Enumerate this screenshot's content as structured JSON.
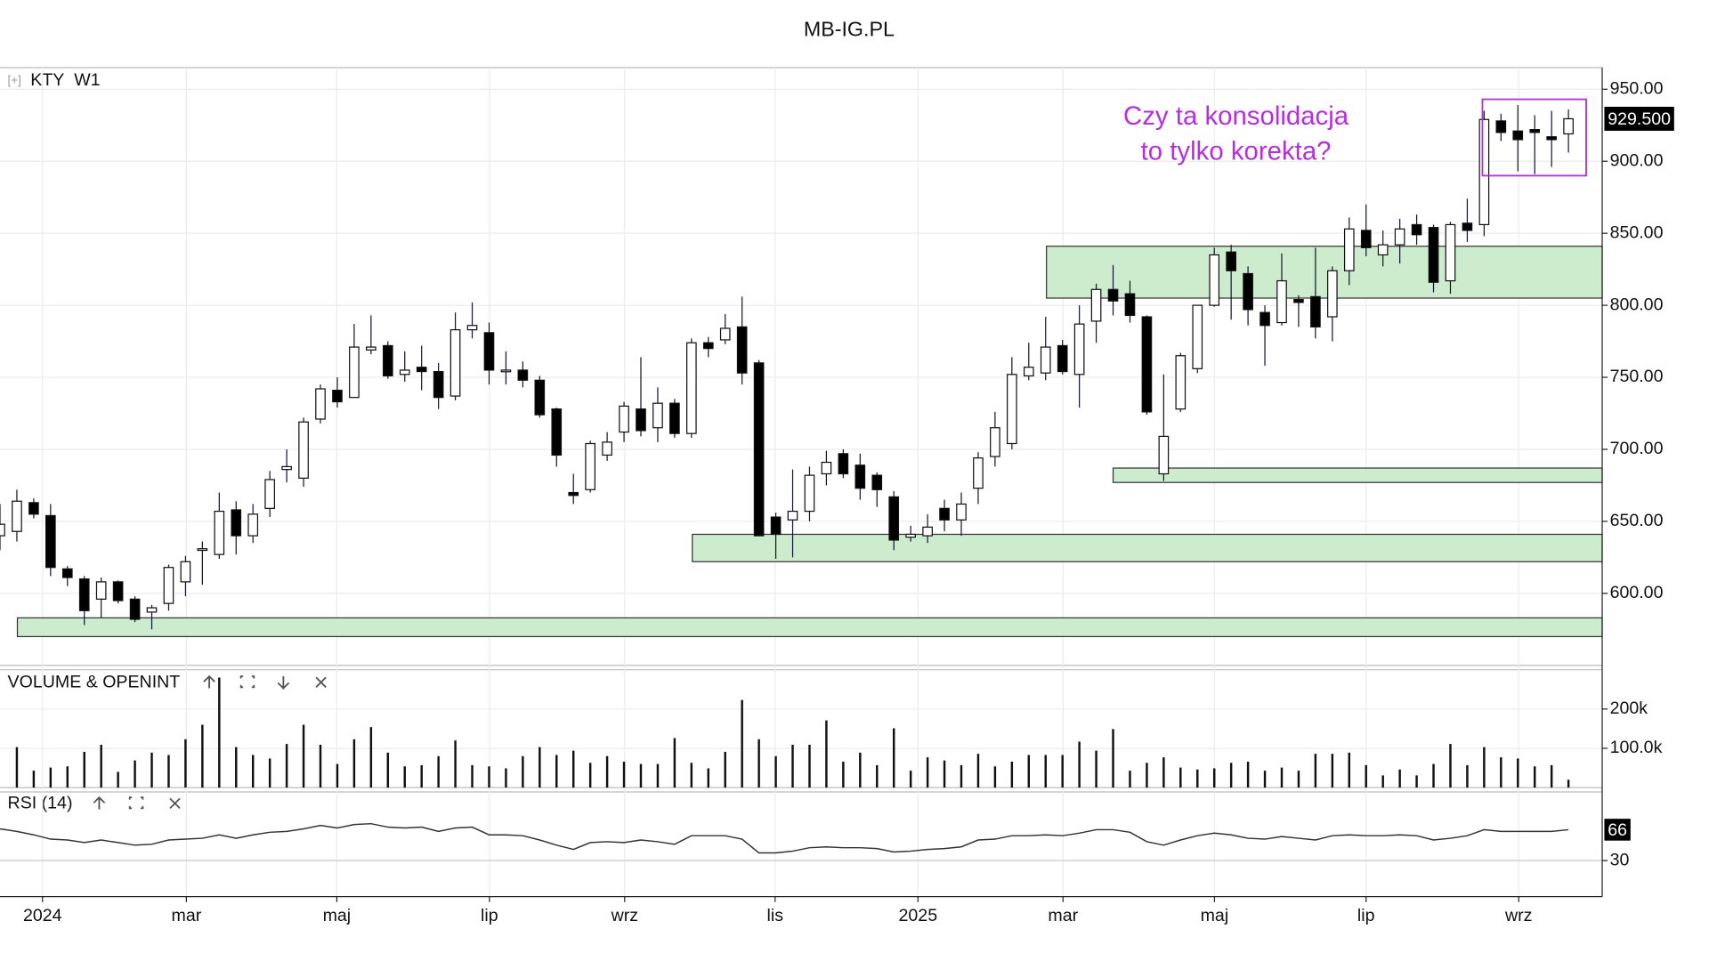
{
  "title": "MB-IG.PL",
  "header": {
    "toggle": "[+]",
    "symbol": "KTY",
    "timeframe": "W1"
  },
  "chart_data": [
    {
      "type": "candlestick",
      "name": "KTY",
      "open": [
        640,
        643,
        663,
        654,
        617,
        610,
        596,
        608,
        596,
        587,
        593,
        608,
        630,
        627,
        658,
        640,
        659,
        686,
        680,
        721,
        741,
        736,
        769,
        772,
        752,
        757,
        754,
        737,
        783,
        781,
        755,
        755,
        748,
        728,
        670,
        672,
        696,
        712,
        728,
        715,
        732,
        711,
        774,
        776,
        785,
        760,
        653,
        651,
        657,
        683,
        697,
        689,
        682,
        667,
        639,
        640,
        659,
        651,
        673,
        695,
        704,
        751,
        753,
        772,
        752,
        789,
        811,
        808,
        792,
        683,
        728,
        756,
        800,
        837,
        822,
        795,
        788,
        804,
        806,
        792,
        824,
        852,
        835,
        842,
        856,
        854,
        817,
        857,
        856,
        928,
        921,
        922,
        917,
        919
      ],
      "high": [
        662,
        672,
        666,
        662,
        619,
        612,
        611,
        609,
        598,
        592,
        620,
        626,
        636,
        670,
        664,
        662,
        685,
        700,
        722,
        745,
        750,
        787,
        793,
        775,
        768,
        772,
        760,
        795,
        802,
        788,
        768,
        761,
        751,
        729,
        683,
        706,
        712,
        733,
        764,
        743,
        735,
        777,
        778,
        794,
        806,
        762,
        656,
        686,
        688,
        699,
        700,
        697,
        684,
        671,
        647,
        655,
        665,
        670,
        698,
        726,
        764,
        774,
        792,
        776,
        800,
        815,
        828,
        817,
        793,
        752,
        767,
        800,
        840,
        842,
        827,
        800,
        836,
        807,
        840,
        827,
        861,
        870,
        852,
        860,
        863,
        856,
        858,
        874,
        935,
        933,
        939,
        932,
        935,
        936
      ],
      "low": [
        630,
        636,
        652,
        612,
        605,
        578,
        583,
        593,
        580,
        575,
        588,
        598,
        606,
        624,
        627,
        635,
        653,
        677,
        674,
        718,
        729,
        736,
        766,
        749,
        747,
        741,
        728,
        734,
        777,
        745,
        745,
        743,
        722,
        688,
        662,
        670,
        692,
        705,
        709,
        705,
        708,
        708,
        764,
        773,
        745,
        640,
        624,
        625,
        650,
        675,
        680,
        665,
        660,
        630,
        636,
        635,
        643,
        640,
        662,
        688,
        700,
        748,
        748,
        752,
        729,
        774,
        793,
        788,
        724,
        678,
        726,
        753,
        799,
        790,
        786,
        758,
        786,
        785,
        777,
        775,
        814,
        834,
        827,
        829,
        842,
        809,
        808,
        844,
        848,
        914,
        893,
        891,
        896,
        906
      ],
      "close": [
        648,
        664,
        655,
        618,
        611,
        588,
        608,
        595,
        582,
        590,
        618,
        622,
        631,
        657,
        640,
        655,
        679,
        688,
        719,
        742,
        733,
        771,
        771,
        751,
        755,
        754,
        736,
        783,
        786,
        755,
        755,
        748,
        724,
        696,
        668,
        704,
        705,
        730,
        713,
        732,
        711,
        774,
        770,
        784,
        753,
        640,
        641,
        657,
        682,
        691,
        683,
        673,
        672,
        637,
        641,
        646,
        651,
        662,
        694,
        715,
        752,
        757,
        771,
        754,
        787,
        811,
        803,
        793,
        726,
        709,
        765,
        800,
        835,
        824,
        797,
        786,
        817,
        802,
        785,
        824,
        853,
        840,
        842,
        853,
        849,
        816,
        856,
        852,
        929,
        920,
        915,
        920,
        915,
        929.5
      ],
      "last_label": "929.500",
      "ylim": [
        550,
        965
      ],
      "yticks": [
        {
          "value": 950,
          "label": "950.00"
        },
        {
          "value": 900,
          "label": "900.00"
        },
        {
          "value": 850,
          "label": "850.00"
        },
        {
          "value": 800,
          "label": "800.00"
        },
        {
          "value": 750,
          "label": "750.00"
        },
        {
          "value": 700,
          "label": "700.00"
        },
        {
          "value": 650,
          "label": "650.00"
        },
        {
          "value": 600,
          "label": "600.00"
        }
      ],
      "grid": true,
      "zones": [
        {
          "start": 1.03,
          "low": 570,
          "high": 583
        },
        {
          "start": 41.05,
          "low": 622,
          "high": 641
        },
        {
          "start": 66,
          "low": 677,
          "high": 687
        },
        {
          "start": 62.05,
          "low": 805,
          "high": 841
        }
      ],
      "zone_color": "#cdeccd",
      "box": {
        "start": 87.9,
        "end": 94.05,
        "low": 890,
        "high": 943,
        "color": "#b52ee0"
      },
      "annotation": {
        "lines": [
          "Czy ta konsolidacja",
          "to tylko korekta?"
        ],
        "color": "#b52ee0"
      }
    },
    {
      "type": "bar",
      "title": "VOLUME & OPENINT",
      "color": "#111111",
      "values": [
        null,
        103000,
        43000,
        51000,
        54000,
        91000,
        109000,
        40000,
        69000,
        89000,
        83000,
        123000,
        160000,
        280000,
        103000,
        83000,
        74000,
        111000,
        160000,
        109000,
        60000,
        123000,
        154000,
        89000,
        54000,
        57000,
        80000,
        120000,
        57000,
        54000,
        49000,
        80000,
        103000,
        83000,
        94000,
        63000,
        80000,
        66000,
        60000,
        60000,
        126000,
        63000,
        49000,
        91000,
        223000,
        123000,
        80000,
        109000,
        109000,
        171000,
        66000,
        89000,
        57000,
        151000,
        43000,
        77000,
        69000,
        57000,
        86000,
        54000,
        66000,
        83000,
        83000,
        83000,
        117000,
        94000,
        149000,
        43000,
        63000,
        77000,
        51000,
        46000,
        49000,
        63000,
        66000,
        43000,
        51000,
        43000,
        86000,
        86000,
        89000,
        57000,
        31000,
        46000,
        31000,
        60000,
        111000,
        57000,
        103000,
        77000,
        74000,
        54000,
        57000,
        20000
      ],
      "ylim": [
        0,
        300000
      ],
      "yticks": [
        {
          "value": 200000,
          "label": "200k"
        },
        {
          "value": 100000,
          "label": "100.0k"
        }
      ]
    },
    {
      "type": "line",
      "title": "RSI (14)",
      "color": "#333333",
      "values": [
        67,
        64,
        60,
        55,
        54,
        51,
        54,
        51,
        48,
        49,
        54,
        55,
        56,
        60,
        56,
        60,
        63,
        64,
        67,
        71,
        68,
        72,
        73,
        69,
        68,
        69,
        64,
        68,
        69,
        60,
        60,
        59,
        54,
        48,
        43,
        51,
        52,
        51,
        54,
        52,
        49,
        59,
        59,
        59,
        55,
        39,
        39,
        41,
        45,
        46,
        45,
        45,
        44,
        40,
        41,
        43,
        44,
        46,
        54,
        55,
        59,
        59,
        60,
        59,
        62,
        66,
        66,
        63,
        52,
        48,
        54,
        59,
        62,
        60,
        56,
        55,
        58,
        56,
        54,
        59,
        60,
        59,
        59,
        60,
        59,
        54,
        56,
        59,
        66,
        64,
        64,
        64,
        64,
        66
      ],
      "ylim": [
        -12,
        110
      ],
      "yticks": [
        30
      ],
      "xlim": [
        0,
        95
      ],
      "xticks": [
        {
          "value": 2.52,
          "label": "2024"
        },
        {
          "value": 11.05,
          "label": "mar"
        },
        {
          "value": 19.97,
          "label": "maj"
        },
        {
          "value": 29.02,
          "label": "lip"
        },
        {
          "value": 37.04,
          "label": "wrz"
        },
        {
          "value": 45.96,
          "label": "lis"
        },
        {
          "value": 54.43,
          "label": "2025"
        },
        {
          "value": 63.03,
          "label": "mar"
        },
        {
          "value": 72.01,
          "label": "maj"
        },
        {
          "value": 81.0,
          "label": "lip"
        },
        {
          "value": 90.05,
          "label": "wrz"
        }
      ]
    }
  ]
}
